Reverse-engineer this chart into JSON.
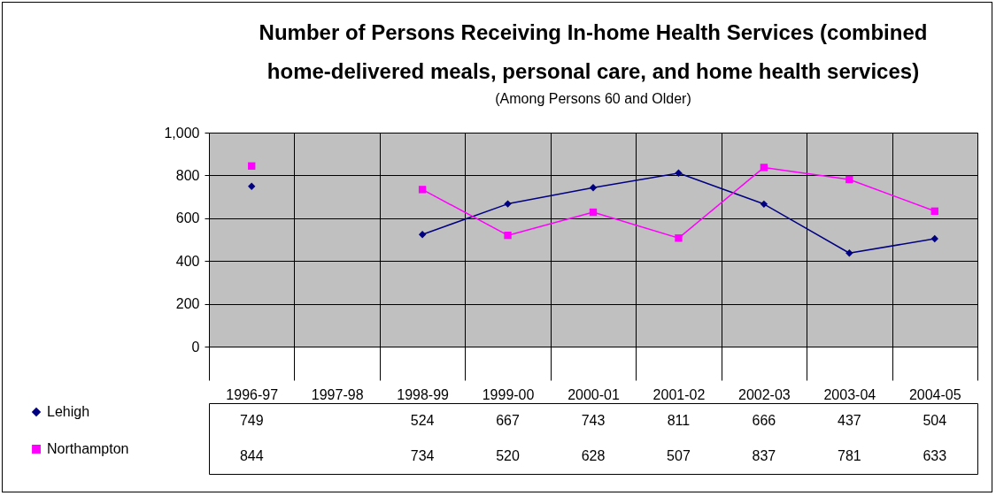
{
  "chart_data": {
    "type": "line",
    "title": "Number of Persons Receiving In-home Health Services (combined home-delivered meals, personal care, and home health services)",
    "subtitle": "(Among Persons 60 and Older)",
    "categories": [
      "1996-97",
      "1997-98",
      "1998-99",
      "1999-00",
      "2000-01",
      "2001-02",
      "2002-03",
      "2003-04",
      "2004-05"
    ],
    "series": [
      {
        "name": "Lehigh",
        "color": "#000080",
        "marker": "diamond",
        "values": [
          749,
          null,
          524,
          667,
          743,
          811,
          666,
          437,
          504
        ]
      },
      {
        "name": "Northampton",
        "color": "#ff00ff",
        "marker": "square",
        "values": [
          844,
          null,
          734,
          520,
          628,
          507,
          837,
          781,
          633
        ]
      }
    ],
    "ylim": [
      0,
      1000
    ],
    "yticks": [
      0,
      200,
      400,
      600,
      800,
      {
        "value": 1000,
        "label": "1,000"
      }
    ],
    "grid": "y",
    "legend": "bottom left",
    "data_labels": true
  }
}
